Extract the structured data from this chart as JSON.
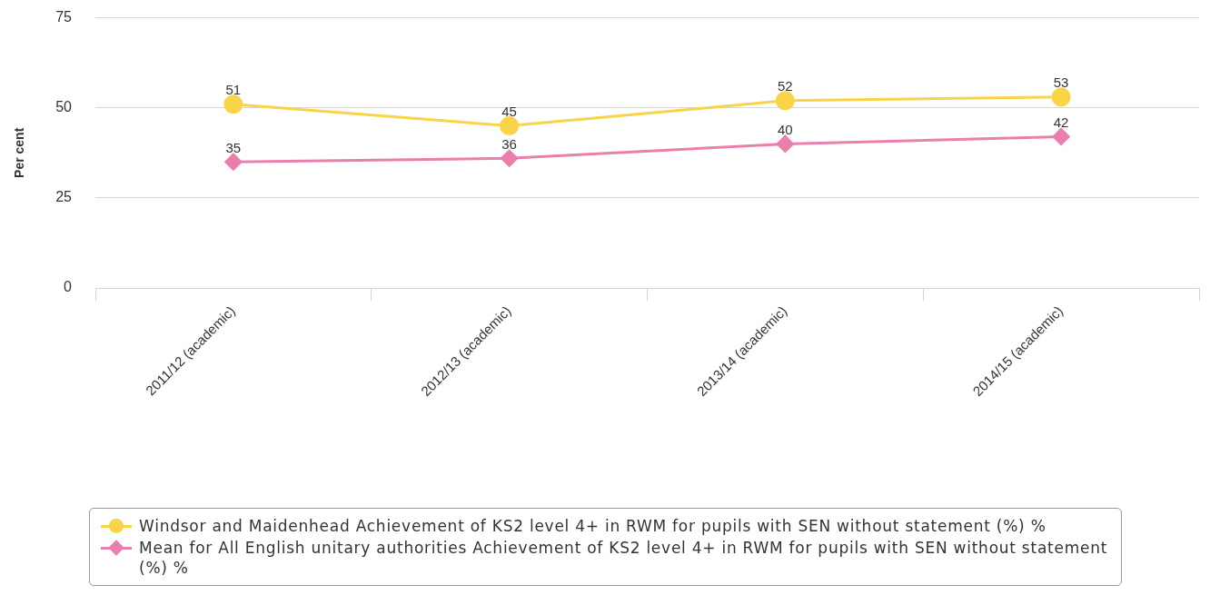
{
  "chart_data": {
    "type": "line",
    "ylabel": "Per cent",
    "categories": [
      "2011/12 (academic)",
      "2012/13 (academic)",
      "2013/14 (academic)",
      "2014/15 (academic)"
    ],
    "series": [
      {
        "name": "Windsor and Maidenhead Achievement of KS2 level 4+ in RWM for pupils with SEN without statement (%) %",
        "color": "#f9d448",
        "marker": "circle",
        "values": [
          51,
          45,
          52,
          53
        ]
      },
      {
        "name": "Mean for All English unitary authorities Achievement of KS2 level 4+ in RWM for pupils with SEN without statement (%) %",
        "color": "#ea7fae",
        "marker": "diamond",
        "values": [
          35,
          36,
          40,
          42
        ]
      }
    ],
    "ylim": [
      0,
      75
    ],
    "yticks": [
      0,
      25,
      50,
      75
    ],
    "grid": "y",
    "legend": "bottom",
    "data_labels": true,
    "line_style": "solid"
  }
}
